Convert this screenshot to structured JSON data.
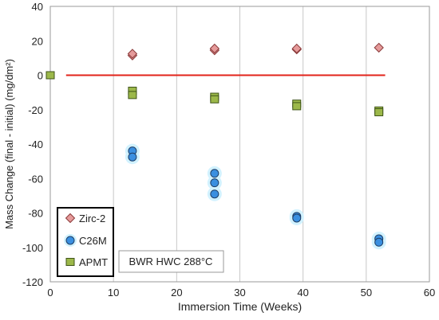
{
  "chart_data": {
    "type": "scatter",
    "title": "",
    "xlabel": "Immersion Time (Weeks)",
    "ylabel": "Mass Change (final - initial) (mg/dm²)",
    "xlim": [
      0,
      60
    ],
    "ylim": [
      -120,
      40
    ],
    "xticks": [
      0,
      10,
      20,
      30,
      40,
      50,
      60
    ],
    "yticks": [
      -120,
      -100,
      -80,
      -60,
      -40,
      -20,
      0,
      20,
      40
    ],
    "grid": "vertical",
    "legend_position": "bottom-left",
    "annotation": "BWR HWC 288°C",
    "reference_line": {
      "y": 0,
      "x_start": 2.5,
      "x_end": 53,
      "color": "#e2231a"
    },
    "series": [
      {
        "name": "Zirc-2",
        "marker": "diamond",
        "color": "#e59a9a",
        "edge": "#8b3a3a",
        "x": [
          13,
          13,
          26,
          26,
          39,
          39,
          52
        ],
        "y": [
          11.5,
          12.5,
          14.5,
          15.5,
          15.0,
          15.5,
          16.0
        ]
      },
      {
        "name": "C26M",
        "marker": "circle",
        "color": "#3a8fe0",
        "edge": "#1f3f66",
        "halo": "#d2f2ff",
        "x": [
          13,
          13,
          26,
          26,
          26,
          39,
          39,
          52,
          52
        ],
        "y": [
          -44,
          -47.5,
          -57,
          -62.5,
          -69,
          -82,
          -83,
          -95,
          -97
        ]
      },
      {
        "name": "APMT",
        "marker": "square",
        "color": "#9cb84a",
        "edge": "#3f5418",
        "x": [
          0,
          13,
          13,
          26,
          26,
          39,
          39,
          52,
          52
        ],
        "y": [
          0,
          -9,
          -11.5,
          -12.5,
          -14,
          -16.5,
          -18,
          -20.5,
          -21.5
        ]
      }
    ]
  }
}
